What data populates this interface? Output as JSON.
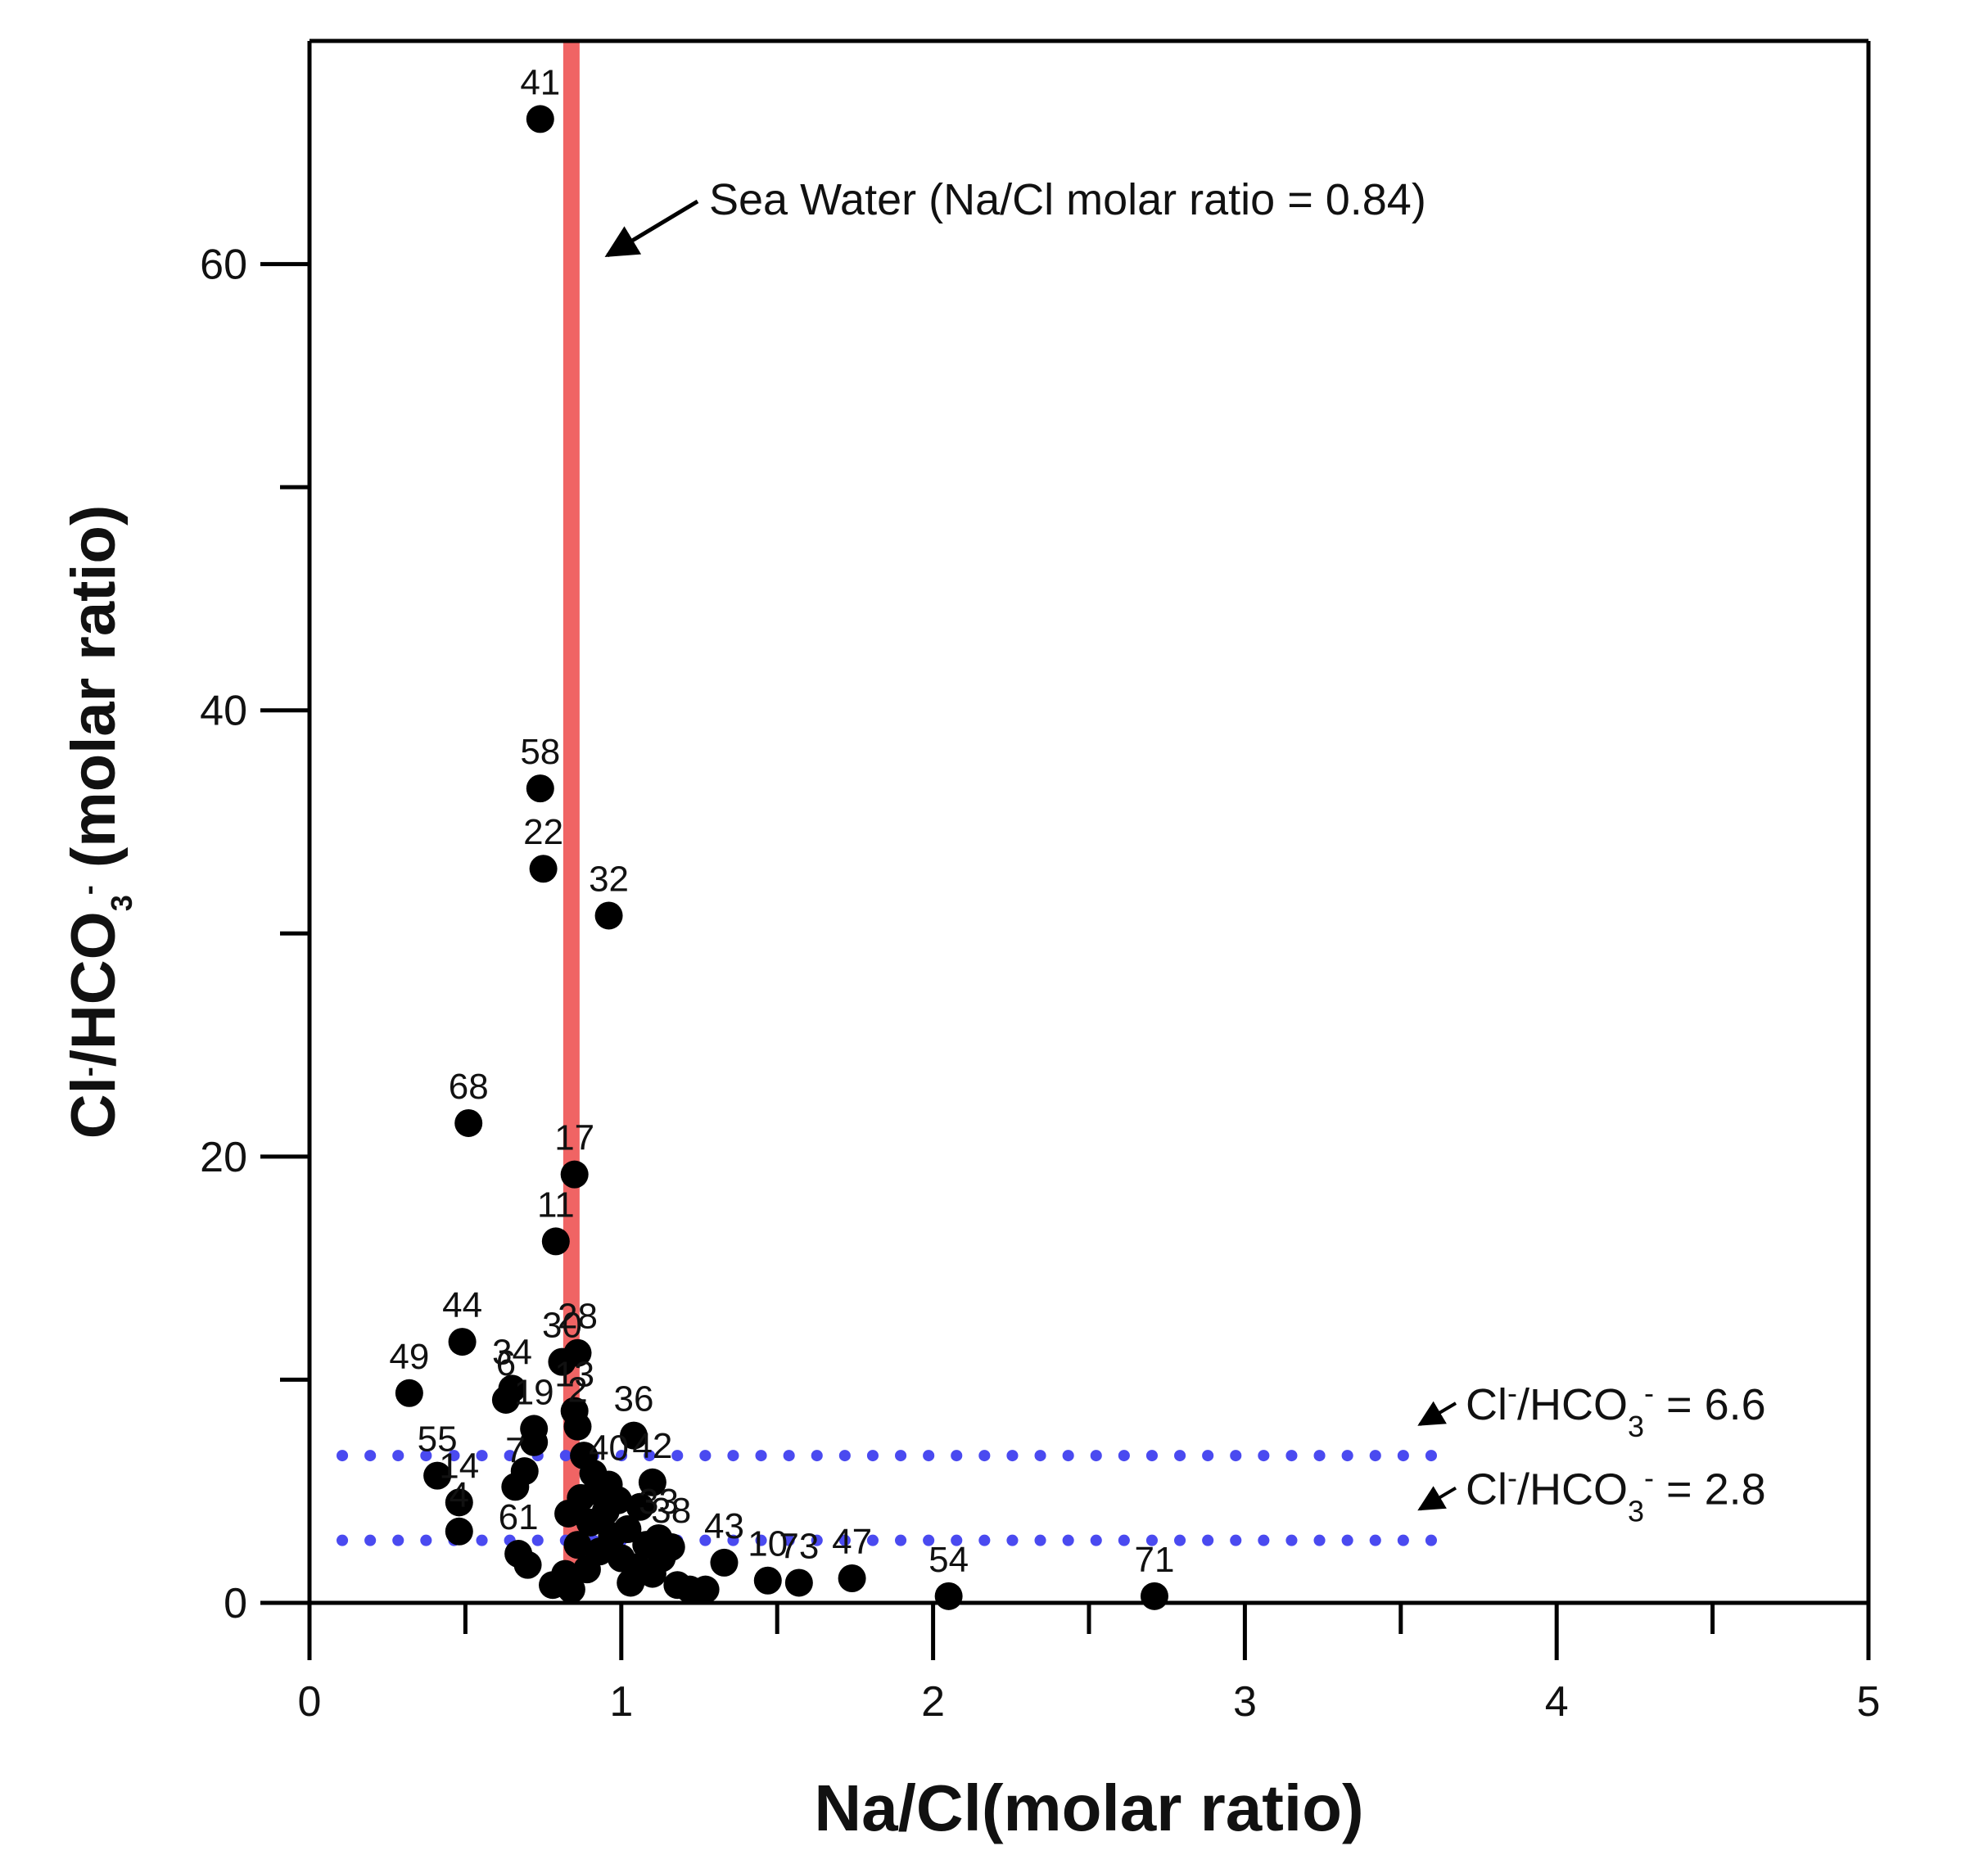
{
  "chart_data": {
    "type": "scatter",
    "title": "",
    "xlabel": "Na/Cl(molar ratio)",
    "ylabel": {
      "parts": [
        {
          "text": "Cl",
          "style": "normal"
        },
        {
          "text": "-",
          "style": "sup"
        },
        {
          "text": "/HCO",
          "style": "normal"
        },
        {
          "text": "3",
          "style": "sub"
        },
        {
          "text": "-",
          "style": "sup"
        },
        {
          "text": " (molar ratio)",
          "style": "normal"
        }
      ]
    },
    "xlim": [
      0,
      5
    ],
    "ylim": [
      0,
      70
    ],
    "xticks": [
      0,
      1,
      2,
      3,
      4,
      5
    ],
    "xminor": [
      0.5,
      1.5,
      2.5,
      3.5,
      4.5
    ],
    "yticks": [
      0,
      20,
      40,
      60
    ],
    "yminor": [
      10,
      30,
      50
    ],
    "grid": false,
    "point_color": "#000000",
    "points": [
      {
        "label": "41",
        "x": 0.74,
        "y": 66.5
      },
      {
        "label": "58",
        "x": 0.74,
        "y": 36.5
      },
      {
        "label": "22",
        "x": 0.75,
        "y": 32.9
      },
      {
        "label": "32",
        "x": 0.96,
        "y": 30.8
      },
      {
        "label": "68",
        "x": 0.51,
        "y": 21.5
      },
      {
        "label": "17",
        "x": 0.85,
        "y": 19.2
      },
      {
        "label": "11",
        "x": 0.79,
        "y": 16.2
      },
      {
        "label": "44",
        "x": 0.49,
        "y": 11.7
      },
      {
        "label": "28",
        "x": 0.86,
        "y": 11.2
      },
      {
        "label": "30",
        "x": 0.81,
        "y": 10.8
      },
      {
        "label": "49",
        "x": 0.32,
        "y": 9.4
      },
      {
        "label": "34",
        "x": 0.65,
        "y": 9.6
      },
      {
        "label": "6",
        "x": 0.63,
        "y": 9.1
      },
      {
        "label": "19",
        "x": 0.72,
        "y": 7.8
      },
      {
        "label": "13",
        "x": 0.85,
        "y": 8.6
      },
      {
        "label": "2",
        "x": 0.86,
        "y": 7.9
      },
      {
        "label": "36",
        "x": 1.04,
        "y": 7.5
      },
      {
        "label": "55",
        "x": 0.41,
        "y": 5.7
      },
      {
        "label": "14",
        "x": 0.48,
        "y": 4.5
      },
      {
        "label": "7",
        "x": 0.66,
        "y": 5.2
      },
      {
        "label": "40",
        "x": 0.96,
        "y": 5.3
      },
      {
        "label": "42",
        "x": 1.1,
        "y": 5.4
      },
      {
        "label": "4",
        "x": 0.48,
        "y": 3.2
      },
      {
        "label": "61",
        "x": 0.67,
        "y": 2.2
      },
      {
        "label": "33",
        "x": 1.12,
        "y": 2.9
      },
      {
        "label": "38",
        "x": 1.16,
        "y": 2.5
      },
      {
        "label": "43",
        "x": 1.33,
        "y": 1.8
      },
      {
        "label": "10",
        "x": 1.47,
        "y": 1.0
      },
      {
        "label": "73",
        "x": 1.57,
        "y": 0.9
      },
      {
        "label": "47",
        "x": 1.74,
        "y": 1.1
      },
      {
        "label": "54",
        "x": 2.05,
        "y": 0.3
      },
      {
        "label": "71",
        "x": 2.71,
        "y": 0.3
      },
      {
        "label": "",
        "x": 0.7,
        "y": 1.7
      },
      {
        "label": "",
        "x": 0.69,
        "y": 5.9
      },
      {
        "label": "",
        "x": 0.72,
        "y": 7.2
      },
      {
        "label": "",
        "x": 0.78,
        "y": 0.8
      },
      {
        "label": "",
        "x": 0.82,
        "y": 1.3
      },
      {
        "label": "",
        "x": 0.84,
        "y": 0.6
      },
      {
        "label": "",
        "x": 0.86,
        "y": 2.6
      },
      {
        "label": "",
        "x": 0.87,
        "y": 4.7
      },
      {
        "label": "",
        "x": 0.88,
        "y": 6.6
      },
      {
        "label": "",
        "x": 0.89,
        "y": 1.5
      },
      {
        "label": "",
        "x": 0.9,
        "y": 3.6
      },
      {
        "label": "",
        "x": 0.92,
        "y": 5.0
      },
      {
        "label": "",
        "x": 0.93,
        "y": 2.3
      },
      {
        "label": "",
        "x": 0.95,
        "y": 4.1
      },
      {
        "label": "",
        "x": 0.97,
        "y": 3.0
      },
      {
        "label": "",
        "x": 0.99,
        "y": 4.6
      },
      {
        "label": "",
        "x": 1.0,
        "y": 2.0
      },
      {
        "label": "",
        "x": 1.02,
        "y": 3.3
      },
      {
        "label": "",
        "x": 1.03,
        "y": 0.9
      },
      {
        "label": "",
        "x": 1.05,
        "y": 1.6
      },
      {
        "label": "",
        "x": 1.06,
        "y": 4.3
      },
      {
        "label": "",
        "x": 1.08,
        "y": 2.6
      },
      {
        "label": "",
        "x": 1.1,
        "y": 1.3
      },
      {
        "label": "",
        "x": 1.13,
        "y": 2.0
      },
      {
        "label": "",
        "x": 1.18,
        "y": 0.8
      },
      {
        "label": "",
        "x": 1.22,
        "y": 0.6
      },
      {
        "label": "",
        "x": 1.27,
        "y": 0.6
      },
      {
        "label": "",
        "x": 0.83,
        "y": 4.0
      },
      {
        "label": "",
        "x": 0.91,
        "y": 5.8
      }
    ],
    "seawater_line": {
      "x": 0.84,
      "color": "#f06464"
    },
    "seawater_annotation": "Sea Water (Na/Cl molar ratio = 0.84)",
    "ref_lines": [
      {
        "y": 6.6,
        "x_end": 3.6,
        "color": "#4a4af0",
        "label_parts": [
          {
            "text": "Cl",
            "style": "normal"
          },
          {
            "text": "-",
            "style": "sup"
          },
          {
            "text": "/HCO",
            "style": "normal"
          },
          {
            "text": "3",
            "style": "sub"
          },
          {
            "text": "-",
            "style": "sup"
          },
          {
            "text": " = 6.6",
            "style": "normal"
          }
        ]
      },
      {
        "y": 2.8,
        "x_end": 3.6,
        "color": "#4a4af0",
        "label_parts": [
          {
            "text": "Cl",
            "style": "normal"
          },
          {
            "text": "-",
            "style": "sup"
          },
          {
            "text": "/HCO",
            "style": "normal"
          },
          {
            "text": "3",
            "style": "sub"
          },
          {
            "text": "-",
            "style": "sup"
          },
          {
            "text": " = 2.8",
            "style": "normal"
          }
        ]
      }
    ]
  }
}
